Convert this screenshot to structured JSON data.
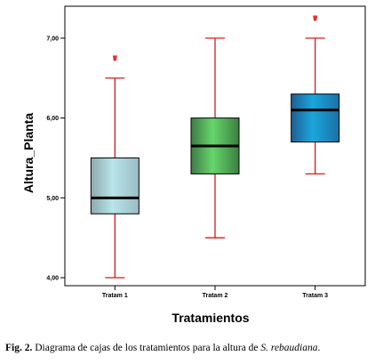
{
  "chart_data": {
    "type": "boxplot",
    "xlabel": "Tratamientos",
    "ylabel": "Altura_Planta",
    "ylim": [
      3.9,
      7.4
    ],
    "yticks": [
      4.0,
      5.0,
      6.0,
      7.0
    ],
    "ytick_labels": [
      "4,00",
      "5,00",
      "6,00",
      "7,00"
    ],
    "grid": false,
    "categories": [
      "Tratam 1",
      "Tratam 2",
      "Tratam 3"
    ],
    "boxes": [
      {
        "name": "Tratam 1",
        "whisker_low": 4.0,
        "q1": 4.8,
        "median": 5.0,
        "q3": 5.5,
        "whisker_high": 6.5,
        "outliers": [
          6.75
        ],
        "color_left": "#8fa9ab",
        "color_mid": "#b8e4ea",
        "color_right": "#9abdc2"
      },
      {
        "name": "Tratam 2",
        "whisker_low": 4.5,
        "q1": 5.3,
        "median": 5.65,
        "q3": 6.0,
        "whisker_high": 7.0,
        "outliers": [],
        "color_left": "#3f7a45",
        "color_mid": "#66d66b",
        "color_right": "#3b7f40"
      },
      {
        "name": "Tratam 3",
        "whisker_low": 5.3,
        "q1": 5.7,
        "median": 6.1,
        "q3": 6.3,
        "whisker_high": 7.0,
        "outliers": [
          7.25
        ],
        "color_left": "#1f5e95",
        "color_mid": "#1aa7dc",
        "color_right": "#1c6fa7"
      }
    ],
    "whisker_color": "#d21d1d",
    "outlier_color": "#e23030"
  },
  "caption": {
    "label": "Fig. 2.",
    "text": " Diagrama de cajas de los tratamientos para la altura de ",
    "species": "S. rebaudiana",
    "end": "."
  }
}
